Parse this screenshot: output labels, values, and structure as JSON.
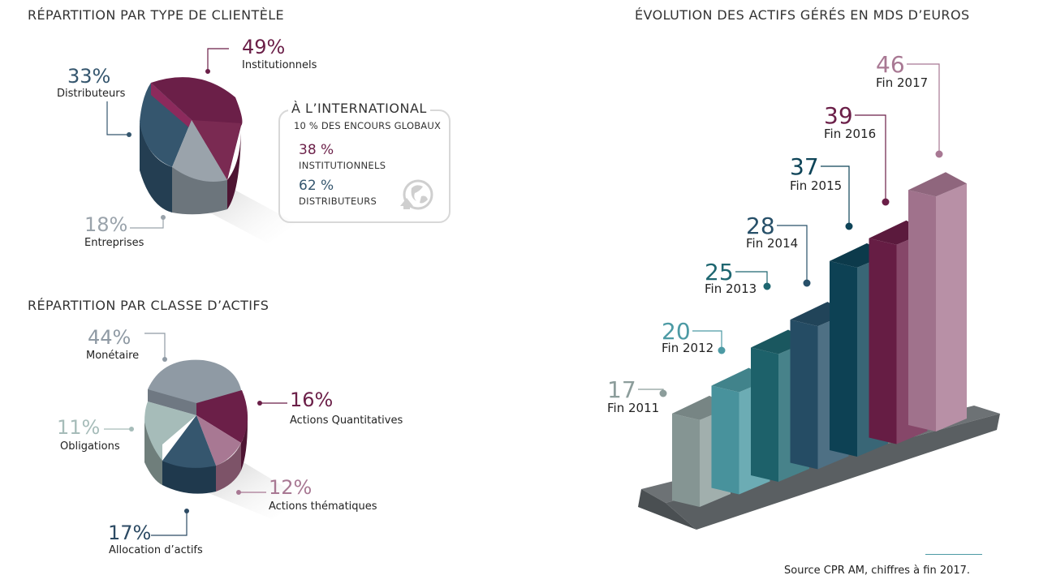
{
  "colors": {
    "institutionnels": "#6b1f48",
    "distributeurs": "#35566e",
    "entreprises": "#9aa3ab",
    "monetaire": "#8f9aa4",
    "quant": "#6b1f48",
    "thematiques": "#a87893",
    "allocation": "#2c4a63",
    "obligations": "#a6bcb9"
  },
  "charts": {
    "clientele": {
      "title": "RÉPARTITION PAR TYPE DE CLIENTÈLE",
      "segments": [
        {
          "pct": "49%",
          "label": "Institutionnels"
        },
        {
          "pct": "33%",
          "label": "Distributeurs"
        },
        {
          "pct": "18%",
          "label": "Entreprises"
        }
      ]
    },
    "actifs": {
      "title": "RÉPARTITION PAR CLASSE D’ACTIFS",
      "segments": [
        {
          "pct": "44%",
          "label": "Monétaire"
        },
        {
          "pct": "16%",
          "label": "Actions Quantitatives"
        },
        {
          "pct": "12%",
          "label": "Actions thématiques"
        },
        {
          "pct": "17%",
          "label": "Allocation d’actifs"
        },
        {
          "pct": "11%",
          "label": "Obligations"
        }
      ]
    },
    "evolution": {
      "title": "ÉVOLUTION DES ACTIFS GÉRÉS EN MDS D’EUROS"
    }
  },
  "international": {
    "title": "À L’INTERNATIONAL",
    "subtitle": "10 % DES ENCOURS GLOBAUX",
    "items": [
      {
        "pct": "38 %",
        "label": "INSTITUTIONNELS"
      },
      {
        "pct": "62 %",
        "label": "DISTRIBUTEURS"
      }
    ]
  },
  "source": "Source CPR AM, chiffres à fin 2017.",
  "chart_data": [
    {
      "type": "pie",
      "title": "RÉPARTITION PAR TYPE DE CLIENTÈLE",
      "categories": [
        "Institutionnels",
        "Distributeurs",
        "Entreprises"
      ],
      "values": [
        49,
        33,
        18
      ]
    },
    {
      "type": "pie",
      "title": "RÉPARTITION PAR CLASSE D’ACTIFS",
      "categories": [
        "Monétaire",
        "Actions Quantitatives",
        "Actions thématiques",
        "Allocation d’actifs",
        "Obligations"
      ],
      "values": [
        44,
        16,
        12,
        17,
        11
      ]
    },
    {
      "type": "bar",
      "title": "ÉVOLUTION DES ACTIFS GÉRÉS EN MDS D’EUROS",
      "categories": [
        "Fin 2011",
        "Fin 2012",
        "Fin 2013",
        "Fin 2014",
        "Fin 2015",
        "Fin 2016",
        "Fin 2017"
      ],
      "values": [
        17,
        20,
        25,
        28,
        37,
        39,
        46
      ],
      "colors": [
        "#8c9d9b",
        "#4c9aa4",
        "#1e6670",
        "#275069",
        "#0e4458",
        "#6b1f48",
        "#a87893"
      ]
    }
  ]
}
